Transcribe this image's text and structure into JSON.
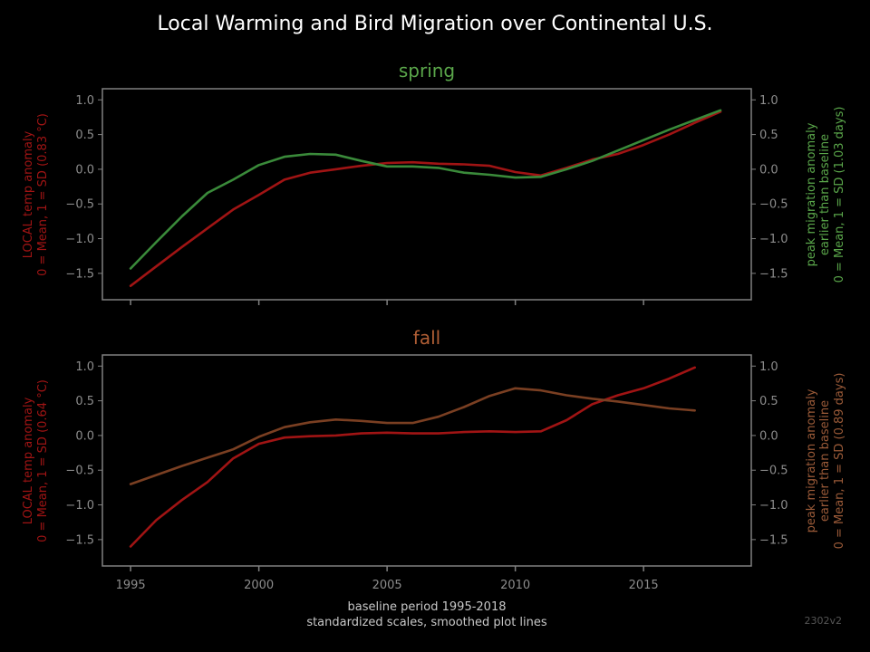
{
  "title": "Local Warming and Bird Migration over Continental U.S.",
  "footer_xlabel_line1": "baseline period 1995-2018",
  "footer_xlabel_line2": "standardized scales, smoothed plot lines",
  "version_tag": "2302v2",
  "colors": {
    "background": "#000000",
    "frame": "#808080",
    "tick_text": "#8c8c8c",
    "temp": "#a01414",
    "spring_migration": "#3a8a3a",
    "spring_title": "#5aa64a",
    "fall_migration": "#7a3f22",
    "fall_title": "#b05e35",
    "version": "#555555"
  },
  "chart_data": [
    {
      "type": "line",
      "title": "spring",
      "xlim": [
        1993.9,
        2019.2
      ],
      "ylim": [
        -1.88,
        1.16
      ],
      "xticks": [
        1995,
        2000,
        2005,
        2010,
        2015
      ],
      "yticks": [
        -1.5,
        -1.0,
        -0.5,
        0.0,
        0.5,
        1.0
      ],
      "ytick_labels": [
        "−1.5",
        "−1.0",
        "−0.5",
        "0.0",
        "0.5",
        "1.0"
      ],
      "ylabel_left": [
        "LOCAL temp anomaly",
        "0 = Mean, 1 = SD (0.83 °C)"
      ],
      "ylabel_right": [
        "peak migration anomaly",
        "earlier than baseline",
        "0 = Mean, 1 = SD (1.03 days)"
      ],
      "x_tick_labels_shown": false,
      "grid": false,
      "series": [
        {
          "role": "temp",
          "x": [
            1995,
            1996,
            1997,
            1998,
            1999,
            2000,
            2001,
            2002,
            2003,
            2004,
            2005,
            2006,
            2007,
            2008,
            2009,
            2010,
            2011,
            2012,
            2013,
            2014,
            2015,
            2016,
            2017,
            2018
          ],
          "values": [
            -1.68,
            -1.4,
            -1.12,
            -0.85,
            -0.58,
            -0.37,
            -0.15,
            -0.05,
            0.0,
            0.05,
            0.09,
            0.1,
            0.08,
            0.07,
            0.05,
            -0.04,
            -0.09,
            0.02,
            0.14,
            0.22,
            0.35,
            0.5,
            0.67,
            0.83
          ]
        },
        {
          "role": "migration",
          "x": [
            1995,
            1996,
            1997,
            1998,
            1999,
            2000,
            2001,
            2002,
            2003,
            2004,
            2005,
            2006,
            2007,
            2008,
            2009,
            2010,
            2011,
            2012,
            2013,
            2014,
            2015,
            2016,
            2017,
            2018
          ],
          "values": [
            -1.43,
            -1.05,
            -0.68,
            -0.34,
            -0.15,
            0.06,
            0.18,
            0.22,
            0.21,
            0.12,
            0.04,
            0.04,
            0.02,
            -0.05,
            -0.08,
            -0.12,
            -0.11,
            0.0,
            0.12,
            0.27,
            0.42,
            0.57,
            0.71,
            0.85
          ]
        }
      ]
    },
    {
      "type": "line",
      "title": "fall",
      "xlim": [
        1993.9,
        2019.2
      ],
      "ylim": [
        -1.88,
        1.16
      ],
      "xticks": [
        1995,
        2000,
        2005,
        2010,
        2015
      ],
      "xtick_labels": [
        "1995",
        "2000",
        "2005",
        "2010",
        "2015"
      ],
      "yticks": [
        -1.5,
        -1.0,
        -0.5,
        0.0,
        0.5,
        1.0
      ],
      "ytick_labels": [
        "−1.5",
        "−1.0",
        "−0.5",
        "0.0",
        "0.5",
        "1.0"
      ],
      "ylabel_left": [
        "LOCAL temp anomaly",
        "0 = Mean, 1 = SD (0.64 °C)"
      ],
      "ylabel_right": [
        "peak migration anomaly",
        "earlier than baseline",
        "0 = Mean, 1 = SD (0.89 days)"
      ],
      "grid": false,
      "series": [
        {
          "role": "temp",
          "x": [
            1995,
            1996,
            1997,
            1998,
            1999,
            2000,
            2001,
            2002,
            2003,
            2004,
            2005,
            2006,
            2007,
            2008,
            2009,
            2010,
            2011,
            2012,
            2013,
            2014,
            2015,
            2016,
            2017
          ],
          "values": [
            -1.6,
            -1.22,
            -0.93,
            -0.67,
            -0.33,
            -0.12,
            -0.03,
            -0.01,
            0.0,
            0.03,
            0.04,
            0.03,
            0.03,
            0.05,
            0.06,
            0.05,
            0.06,
            0.22,
            0.45,
            0.58,
            0.68,
            0.82,
            0.98
          ]
        },
        {
          "role": "migration",
          "x": [
            1995,
            1996,
            1997,
            1998,
            1999,
            2000,
            2001,
            2002,
            2003,
            2004,
            2005,
            2006,
            2007,
            2008,
            2009,
            2010,
            2011,
            2012,
            2013,
            2014,
            2015,
            2016,
            2017
          ],
          "values": [
            -0.7,
            -0.57,
            -0.44,
            -0.32,
            -0.2,
            -0.02,
            0.12,
            0.19,
            0.23,
            0.21,
            0.18,
            0.18,
            0.27,
            0.41,
            0.57,
            0.68,
            0.65,
            0.58,
            0.53,
            0.49,
            0.44,
            0.39,
            0.36
          ]
        }
      ]
    }
  ]
}
